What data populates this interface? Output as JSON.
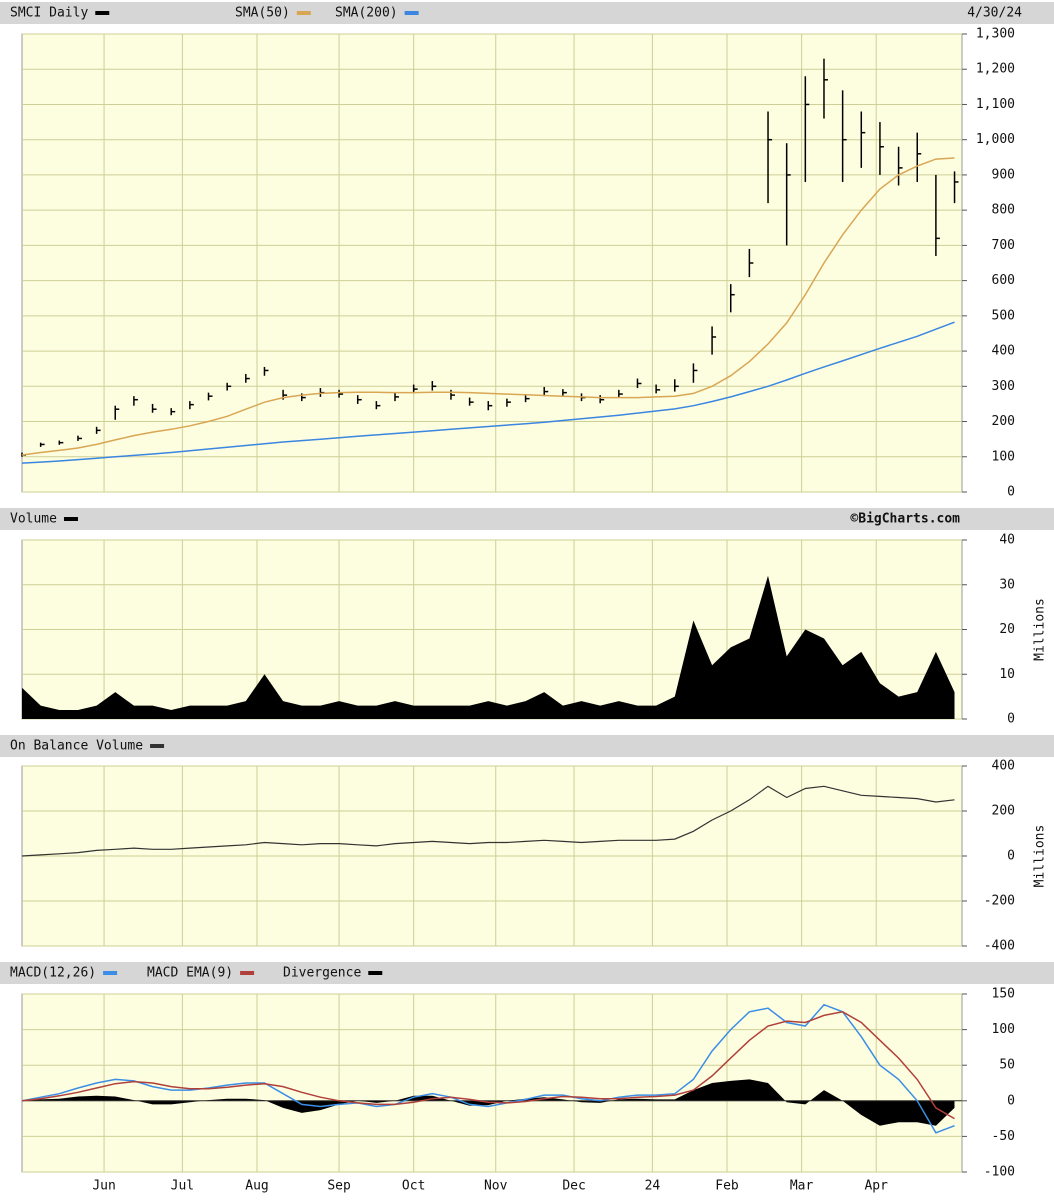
{
  "chart_data": [
    {
      "type": "ohlc",
      "title": "SMCI Daily",
      "date": "4/30/24",
      "color": "#000000",
      "x": [
        0,
        5,
        10,
        15,
        20,
        25,
        30,
        35,
        40,
        45,
        50,
        55,
        60,
        65,
        70,
        75,
        80,
        85,
        90,
        95,
        100,
        105,
        110,
        115,
        120,
        125,
        130,
        135,
        140,
        145,
        150,
        155,
        160,
        165,
        170,
        175,
        180,
        185,
        190,
        195,
        200,
        205,
        210,
        215,
        220,
        225,
        230,
        235,
        240,
        245,
        250
      ],
      "high": [
        112,
        140,
        146,
        160,
        185,
        245,
        272,
        250,
        238,
        258,
        282,
        310,
        335,
        355,
        290,
        280,
        295,
        290,
        275,
        258,
        282,
        305,
        315,
        290,
        268,
        258,
        265,
        278,
        298,
        292,
        280,
        275,
        290,
        322,
        305,
        320,
        365,
        470,
        590,
        690,
        1080,
        990,
        1180,
        1230,
        1140,
        1080,
        1050,
        980,
        1020,
        900,
        910
      ],
      "low": [
        100,
        128,
        134,
        145,
        165,
        205,
        245,
        225,
        218,
        235,
        260,
        288,
        310,
        330,
        262,
        258,
        270,
        268,
        250,
        235,
        258,
        280,
        288,
        262,
        245,
        232,
        242,
        255,
        272,
        270,
        258,
        252,
        268,
        295,
        280,
        285,
        310,
        390,
        510,
        610,
        820,
        700,
        880,
        1060,
        880,
        920,
        900,
        870,
        880,
        670,
        820
      ],
      "close": [
        105,
        135,
        140,
        152,
        175,
        235,
        262,
        235,
        228,
        248,
        272,
        300,
        322,
        345,
        275,
        268,
        282,
        278,
        262,
        245,
        270,
        292,
        300,
        275,
        255,
        245,
        255,
        265,
        285,
        282,
        268,
        262,
        278,
        308,
        290,
        300,
        345,
        440,
        560,
        650,
        1000,
        900,
        1100,
        1170,
        1000,
        1020,
        980,
        920,
        960,
        720,
        880
      ],
      "overlays": [
        {
          "name": "SMA(50)",
          "color": "#d9a654",
          "values": [
            105,
            112,
            118,
            125,
            135,
            148,
            160,
            170,
            178,
            188,
            200,
            215,
            235,
            255,
            268,
            275,
            280,
            282,
            283,
            283,
            282,
            282,
            283,
            283,
            282,
            280,
            278,
            276,
            274,
            272,
            270,
            268,
            268,
            268,
            270,
            272,
            280,
            300,
            330,
            370,
            420,
            480,
            560,
            650,
            730,
            800,
            860,
            900,
            925,
            945,
            948
          ]
        },
        {
          "name": "SMA(200)",
          "color": "#3a86e0",
          "values": [
            82,
            85,
            88,
            92,
            96,
            100,
            104,
            108,
            112,
            117,
            122,
            127,
            132,
            137,
            142,
            146,
            150,
            154,
            158,
            162,
            166,
            170,
            174,
            178,
            182,
            186,
            190,
            194,
            198,
            203,
            208,
            213,
            218,
            224,
            230,
            236,
            245,
            257,
            270,
            285,
            300,
            318,
            337,
            355,
            372,
            390,
            408,
            425,
            442,
            462,
            482
          ]
        }
      ],
      "xlim": [
        0,
        252
      ],
      "xticks": [
        22,
        43,
        63,
        85,
        105,
        127,
        148,
        169,
        189,
        209,
        229
      ],
      "ylim": [
        0,
        1300
      ],
      "yticks": [
        0,
        100,
        200,
        300,
        400,
        500,
        600,
        700,
        800,
        900,
        {
          "value": 1000,
          "label": "1,000"
        },
        {
          "value": 1100,
          "label": "1,100"
        },
        {
          "value": 1200,
          "label": "1,200"
        },
        {
          "value": 1300,
          "label": "1,300"
        }
      ],
      "grid": true
    },
    {
      "type": "area",
      "title": "Volume",
      "source": "©BigCharts.com",
      "y_label": "Millions",
      "color": "#000000",
      "x": [
        0,
        5,
        10,
        15,
        20,
        25,
        30,
        35,
        40,
        45,
        50,
        55,
        60,
        65,
        70,
        75,
        80,
        85,
        90,
        95,
        100,
        105,
        110,
        115,
        120,
        125,
        130,
        135,
        140,
        145,
        150,
        155,
        160,
        165,
        170,
        175,
        180,
        185,
        190,
        195,
        200,
        205,
        210,
        215,
        220,
        225,
        230,
        235,
        240,
        245,
        250
      ],
      "values": [
        7,
        3,
        2,
        2,
        3,
        6,
        3,
        3,
        2,
        3,
        3,
        3,
        4,
        10,
        4,
        3,
        3,
        4,
        3,
        3,
        4,
        3,
        3,
        3,
        3,
        4,
        3,
        4,
        6,
        3,
        4,
        3,
        4,
        3,
        3,
        5,
        22,
        12,
        16,
        18,
        32,
        14,
        20,
        18,
        12,
        15,
        8,
        5,
        6,
        15,
        6
      ],
      "xlim": [
        0,
        252
      ],
      "xticks": [
        22,
        43,
        63,
        85,
        105,
        127,
        148,
        169,
        189,
        209,
        229
      ],
      "ylim": [
        0,
        40
      ],
      "yticks": [
        0,
        10,
        20,
        30,
        40
      ],
      "grid": true
    },
    {
      "type": "line",
      "title": "On Balance Volume",
      "y_label": "Millions",
      "color": "#333333",
      "x": [
        0,
        5,
        10,
        15,
        20,
        25,
        30,
        35,
        40,
        45,
        50,
        55,
        60,
        65,
        70,
        75,
        80,
        85,
        90,
        95,
        100,
        105,
        110,
        115,
        120,
        125,
        130,
        135,
        140,
        145,
        150,
        155,
        160,
        165,
        170,
        175,
        180,
        185,
        190,
        195,
        200,
        205,
        210,
        215,
        220,
        225,
        230,
        235,
        240,
        245,
        250
      ],
      "values": [
        0,
        5,
        10,
        15,
        25,
        30,
        35,
        30,
        30,
        35,
        40,
        45,
        50,
        60,
        55,
        50,
        55,
        55,
        50,
        45,
        55,
        60,
        65,
        60,
        55,
        60,
        60,
        65,
        70,
        65,
        60,
        65,
        70,
        70,
        70,
        75,
        110,
        160,
        200,
        250,
        310,
        260,
        300,
        310,
        290,
        270,
        265,
        260,
        255,
        240,
        250
      ],
      "xlim": [
        0,
        252
      ],
      "xticks": [
        22,
        43,
        63,
        85,
        105,
        127,
        148,
        169,
        189,
        209,
        229
      ],
      "ylim": [
        -400,
        400
      ],
      "yticks": [
        -400,
        -200,
        0,
        200,
        400
      ],
      "grid": true
    },
    {
      "type": "macd",
      "x": [
        0,
        5,
        10,
        15,
        20,
        25,
        30,
        35,
        40,
        45,
        50,
        55,
        60,
        65,
        70,
        75,
        80,
        85,
        90,
        95,
        100,
        105,
        110,
        115,
        120,
        125,
        130,
        135,
        140,
        145,
        150,
        155,
        160,
        165,
        170,
        175,
        180,
        185,
        190,
        195,
        200,
        205,
        210,
        215,
        220,
        225,
        230,
        235,
        240,
        245,
        250
      ],
      "series": [
        {
          "name": "MACD(12,26)",
          "type": "line",
          "color": "#3a8ee6",
          "values": [
            0,
            5,
            10,
            18,
            25,
            30,
            28,
            20,
            15,
            15,
            18,
            22,
            25,
            25,
            10,
            -5,
            -8,
            -5,
            -3,
            -8,
            -5,
            5,
            10,
            5,
            -5,
            -8,
            -3,
            2,
            8,
            8,
            3,
            0,
            5,
            8,
            8,
            10,
            30,
            70,
            100,
            125,
            130,
            110,
            105,
            135,
            125,
            90,
            50,
            30,
            0,
            -45,
            -35
          ]
        },
        {
          "name": "MACD EMA(9)",
          "type": "line",
          "color": "#b0403a",
          "values": [
            0,
            3,
            7,
            12,
            18,
            24,
            27,
            25,
            20,
            17,
            17,
            19,
            22,
            24,
            20,
            12,
            5,
            0,
            -3,
            -5,
            -5,
            -2,
            3,
            5,
            2,
            -2,
            -3,
            -1,
            3,
            6,
            5,
            3,
            3,
            5,
            6,
            8,
            15,
            35,
            60,
            85,
            105,
            112,
            110,
            120,
            125,
            110,
            85,
            60,
            30,
            -10,
            -25
          ]
        },
        {
          "name": "Divergence",
          "type": "area",
          "color": "#000000",
          "values": [
            0,
            2,
            3,
            6,
            7,
            6,
            1,
            -5,
            -5,
            -2,
            1,
            3,
            3,
            1,
            -10,
            -17,
            -13,
            -5,
            0,
            -3,
            0,
            7,
            7,
            0,
            -7,
            -6,
            0,
            3,
            5,
            2,
            -2,
            -3,
            2,
            3,
            2,
            2,
            15,
            25,
            28,
            30,
            25,
            -2,
            -5,
            15,
            0,
            -20,
            -35,
            -30,
            -30,
            -35,
            -10
          ]
        }
      ],
      "xlim": [
        0,
        252
      ],
      "xticks": [
        {
          "value": 22,
          "label": "Jun"
        },
        {
          "value": 43,
          "label": "Jul"
        },
        {
          "value": 63,
          "label": "Aug"
        },
        {
          "value": 85,
          "label": "Sep"
        },
        {
          "value": 105,
          "label": "Oct"
        },
        {
          "value": 127,
          "label": "Nov"
        },
        {
          "value": 148,
          "label": "Dec"
        },
        {
          "value": 169,
          "label": "24"
        },
        {
          "value": 189,
          "label": "Feb"
        },
        {
          "value": 209,
          "label": "Mar"
        },
        {
          "value": 229,
          "label": "Apr"
        }
      ],
      "ylim": [
        -100,
        150
      ],
      "yticks": [
        -100,
        -50,
        0,
        50,
        100,
        150
      ],
      "grid": true
    }
  ]
}
